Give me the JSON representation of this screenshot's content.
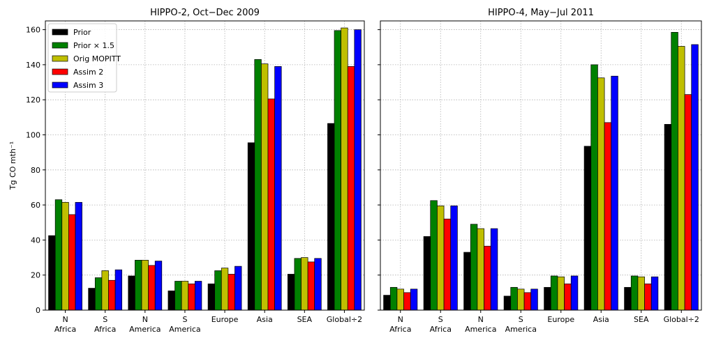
{
  "chart_data": [
    {
      "type": "bar",
      "title": "HIPPO-2, Oct−Dec 2009",
      "y_label": "Tg CO mth⁻¹",
      "categories": [
        [
          "N",
          "Africa"
        ],
        [
          "S",
          "Africa"
        ],
        [
          "N",
          "America"
        ],
        [
          "S",
          "America"
        ],
        [
          "Europe"
        ],
        [
          "Asia"
        ],
        [
          "SEA"
        ],
        [
          "Global÷2"
        ]
      ],
      "series": [
        {
          "name": "Prior",
          "color": "#000000",
          "values": [
            42.5,
            12.5,
            19.5,
            11,
            15,
            95.5,
            20.5,
            106.5
          ]
        },
        {
          "name": "Prior × 1.5",
          "color": "#008000",
          "values": [
            63,
            18.5,
            28.5,
            16.5,
            22.5,
            143,
            29.5,
            159.5
          ]
        },
        {
          "name": "Orig MOPITT",
          "color": "#bfbf00",
          "values": [
            61.5,
            22.5,
            28.5,
            16.5,
            24,
            140.5,
            30,
            161
          ]
        },
        {
          "name": "Assim 2",
          "color": "#ff0000",
          "values": [
            54.5,
            17,
            25.5,
            15,
            20.5,
            120.5,
            27.5,
            139
          ]
        },
        {
          "name": "Assim 3",
          "color": "#0000ff",
          "values": [
            61.5,
            23,
            28,
            16.5,
            25,
            139,
            29.5,
            160
          ]
        }
      ],
      "ylim": [
        0,
        165
      ],
      "yticks": [
        0,
        20,
        40,
        60,
        80,
        100,
        120,
        140,
        160
      ],
      "grid": true,
      "legend": "upper left"
    },
    {
      "type": "bar",
      "title": "HIPPO-4, May−Jul 2011",
      "categories": [
        [
          "N",
          "Africa"
        ],
        [
          "S",
          "Africa"
        ],
        [
          "N",
          "America"
        ],
        [
          "S",
          "America"
        ],
        [
          "Europe"
        ],
        [
          "Asia"
        ],
        [
          "SEA"
        ],
        [
          "Global÷2"
        ]
      ],
      "series": [
        {
          "color": "#000000",
          "values": [
            8.5,
            42,
            33,
            8,
            13,
            93.5,
            13,
            106
          ]
        },
        {
          "color": "#008000",
          "values": [
            13,
            62.5,
            49,
            13,
            19.5,
            140,
            19.5,
            158.5
          ]
        },
        {
          "color": "#bfbf00",
          "values": [
            12,
            59.5,
            46.5,
            12,
            19,
            132.5,
            19,
            150.5
          ]
        },
        {
          "color": "#ff0000",
          "values": [
            10,
            52,
            36.5,
            10,
            15,
            107,
            15,
            123
          ]
        },
        {
          "color": "#0000ff",
          "values": [
            12,
            59.5,
            46.5,
            12,
            19.5,
            133.5,
            19,
            151.5
          ]
        }
      ],
      "ylim": [
        0,
        165
      ],
      "yticks": [
        0,
        20,
        40,
        60,
        80,
        100,
        120,
        140,
        160
      ],
      "grid": true
    }
  ]
}
